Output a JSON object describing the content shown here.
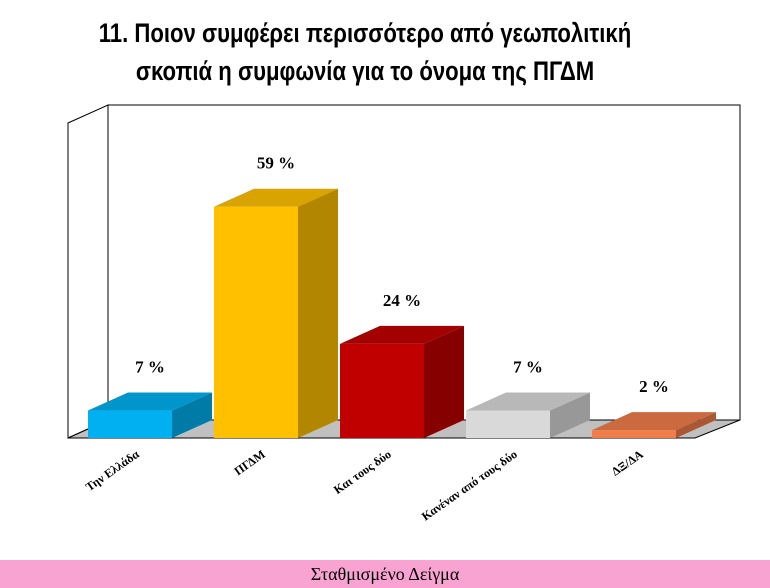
{
  "chart_data": {
    "type": "bar3d",
    "title": [
      "11. Ποιον συμφέρει περισσότερο από γεωπολιτική",
      "σκοπιά η συμφωνία για το όνομα της ΠΓΔΜ"
    ],
    "categories": [
      "Την Ελλάδα",
      "ΠΓΔΜ",
      "Και τους δύο",
      "Κανέναν από τους δύο",
      "ΔΞ/ΔΑ"
    ],
    "values": [
      7,
      59,
      24,
      7,
      2
    ],
    "value_labels": [
      "7 %",
      "59 %",
      "24 %",
      "7 %",
      "2 %"
    ],
    "colors": [
      "#00b0f0",
      "#ffc000",
      "#c00000",
      "#d9d9d9",
      "#f07d4a"
    ]
  },
  "footer": "Σταθμισμένο Δείγμα"
}
